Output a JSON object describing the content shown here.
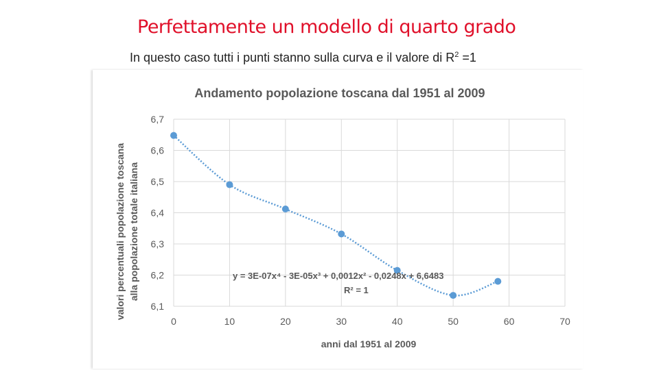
{
  "slide": {
    "title": "Perfettamente un modello di quarto grado",
    "subtitle_main": "In questo caso tutti i punti stanno sulla curva e il valore di R",
    "subtitle_sup": "2",
    "subtitle_end": " =1"
  },
  "chart_data": {
    "type": "scatter",
    "title": "Andamento popolazione toscana dal 1951 al 2009",
    "xlabel": "anni dal 1951 al 2009",
    "ylabel_line1": "valori percentuali popolazione toscana",
    "ylabel_line2": "alla popolazione totale italiana",
    "xlim": [
      0,
      70
    ],
    "ylim": [
      6.1,
      6.7
    ],
    "x_ticks": [
      "0",
      "10",
      "20",
      "30",
      "40",
      "50",
      "60",
      "70"
    ],
    "y_ticks": [
      "6,1",
      "6,2",
      "6,3",
      "6,4",
      "6,5",
      "6,6",
      "6,7"
    ],
    "grid": true,
    "series": [
      {
        "x": [
          0,
          10,
          20,
          30,
          40,
          50,
          58
        ],
        "y": [
          6.648,
          6.49,
          6.412,
          6.332,
          6.215,
          6.135,
          6.18
        ]
      }
    ],
    "trendline": {
      "type": "polynomial",
      "order": 4,
      "equation": "y = 3E-07x⁴ - 3E-05x³ + 0,0012x² - 0,0248x + 6,6483",
      "r2_label": "R² = 1",
      "coefficients": [
        6.6483,
        -0.0248,
        0.0012,
        -3e-05,
        3e-07
      ]
    },
    "colors": {
      "points": "#5b9bd5",
      "trendline": "#5b9bd5",
      "grid": "#d9d9d9",
      "text": "#595959"
    }
  }
}
